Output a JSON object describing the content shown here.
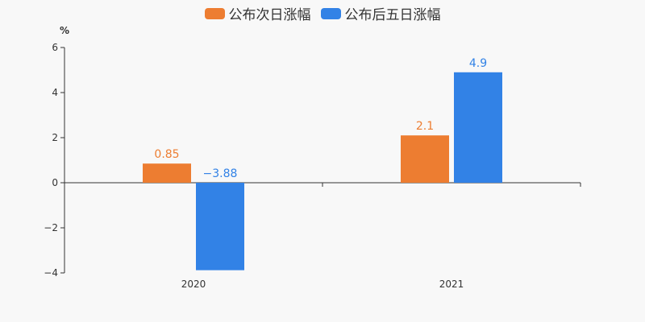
{
  "chart_data": {
    "type": "bar",
    "categories": [
      "2020",
      "2021"
    ],
    "series": [
      {
        "name": "公布次日涨幅",
        "values": [
          0.85,
          2.1
        ],
        "labels": [
          "0.85",
          "2.1"
        ],
        "color": "#ed7d31"
      },
      {
        "name": "公布后五日涨幅",
        "values": [
          -3.88,
          4.9
        ],
        "labels": [
          "−3.88",
          "4.9"
        ],
        "color": "#3282e6"
      }
    ],
    "ylabel": "%",
    "ylim": [
      -4,
      6
    ],
    "yticks": [
      -4,
      -2,
      0,
      2,
      4,
      6
    ],
    "ytick_labels": [
      "−4",
      "−2",
      "0",
      "2",
      "4",
      "6"
    ],
    "legend_position": "top-center",
    "grid": false
  }
}
